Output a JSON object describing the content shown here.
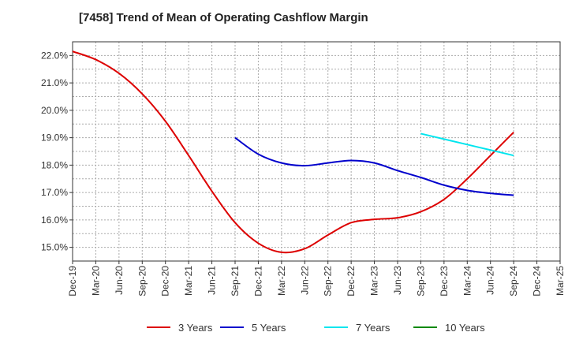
{
  "chart_data": {
    "type": "line",
    "title": "[7458]  Trend of Mean of Operating Cashflow Margin",
    "xlabel": "",
    "ylabel": "",
    "x_categories": [
      "Dec-19",
      "Mar-20",
      "Jun-20",
      "Sep-20",
      "Dec-20",
      "Mar-21",
      "Jun-21",
      "Sep-21",
      "Dec-21",
      "Mar-22",
      "Jun-22",
      "Sep-22",
      "Dec-22",
      "Mar-23",
      "Jun-23",
      "Sep-23",
      "Dec-23",
      "Mar-24",
      "Jun-24",
      "Sep-24",
      "Dec-24",
      "Mar-25"
    ],
    "y_ticks": [
      "15.0%",
      "16.0%",
      "17.0%",
      "18.0%",
      "19.0%",
      "20.0%",
      "21.0%",
      "22.0%"
    ],
    "ylim": [
      14.5,
      22.5
    ],
    "grid": true,
    "legend_position": "bottom",
    "series": [
      {
        "name": "3 Years",
        "color": "#dd0000",
        "points": [
          [
            "Dec-19",
            22.15
          ],
          [
            "Mar-20",
            21.85
          ],
          [
            "Jun-20",
            21.35
          ],
          [
            "Sep-20",
            20.6
          ],
          [
            "Dec-20",
            19.6
          ],
          [
            "Mar-21",
            18.35
          ],
          [
            "Jun-21",
            17.05
          ],
          [
            "Sep-21",
            15.9
          ],
          [
            "Dec-21",
            15.15
          ],
          [
            "Mar-22",
            14.82
          ],
          [
            "Jun-22",
            14.95
          ],
          [
            "Sep-22",
            15.45
          ],
          [
            "Dec-22",
            15.9
          ],
          [
            "Mar-23",
            16.02
          ],
          [
            "Jun-23",
            16.08
          ],
          [
            "Sep-23",
            16.3
          ],
          [
            "Dec-23",
            16.75
          ],
          [
            "Mar-24",
            17.5
          ],
          [
            "Jun-24",
            18.35
          ],
          [
            "Sep-24",
            19.2
          ]
        ]
      },
      {
        "name": "5 Years",
        "color": "#0000cc",
        "points": [
          [
            "Sep-21",
            19.0
          ],
          [
            "Dec-21",
            18.4
          ],
          [
            "Mar-22",
            18.08
          ],
          [
            "Jun-22",
            17.98
          ],
          [
            "Sep-22",
            18.08
          ],
          [
            "Dec-22",
            18.17
          ],
          [
            "Mar-23",
            18.08
          ],
          [
            "Jun-23",
            17.8
          ],
          [
            "Sep-23",
            17.55
          ],
          [
            "Dec-23",
            17.27
          ],
          [
            "Mar-24",
            17.08
          ],
          [
            "Jun-24",
            16.97
          ],
          [
            "Sep-24",
            16.9
          ]
        ]
      },
      {
        "name": "7 Years",
        "color": "#00e5ee",
        "points": [
          [
            "Sep-23",
            19.15
          ],
          [
            "Dec-23",
            18.95
          ],
          [
            "Mar-24",
            18.75
          ],
          [
            "Jun-24",
            18.55
          ],
          [
            "Sep-24",
            18.35
          ]
        ]
      },
      {
        "name": "10 Years",
        "color": "#008800",
        "points": []
      }
    ]
  }
}
